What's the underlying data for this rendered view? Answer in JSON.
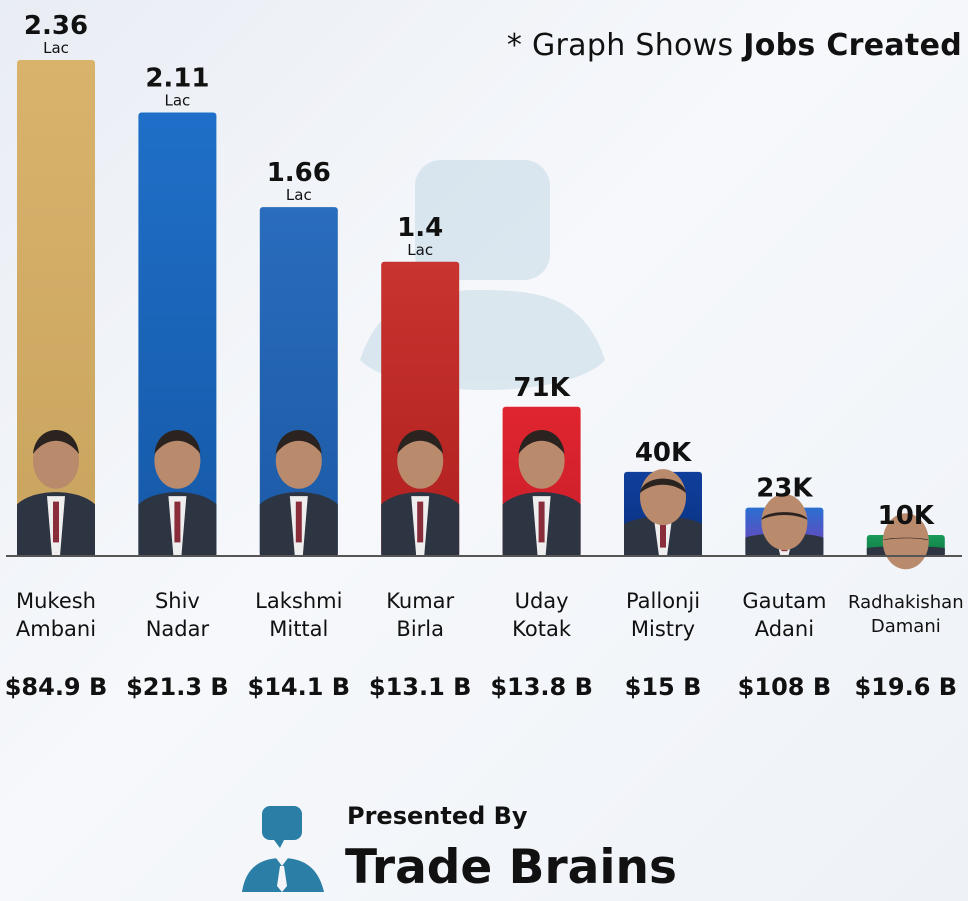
{
  "note": {
    "prefix": "* Graph Shows ",
    "bold": "Jobs Created"
  },
  "chart_data": {
    "type": "bar",
    "ylabel": "",
    "ylim": [
      0,
      2.5
    ],
    "grid": false,
    "legend": "none",
    "categories": [
      {
        "first": "Mukesh",
        "last": "Ambani"
      },
      {
        "first": "Shiv",
        "last": "Nadar"
      },
      {
        "first": "Lakshmi",
        "last": "Mittal"
      },
      {
        "first": "Kumar",
        "last": "Birla"
      },
      {
        "first": "Uday",
        "last": "Kotak"
      },
      {
        "first": "Pallonji",
        "last": "Mistry"
      },
      {
        "first": "Gautam",
        "last": "Adani"
      },
      {
        "first": "Radhakishan",
        "last": "Damani"
      }
    ],
    "values": [
      2.36,
      2.11,
      1.66,
      1.4,
      0.71,
      0.4,
      0.23,
      0.1
    ],
    "value_labels": [
      {
        "num": "2.36",
        "unit": "Lac"
      },
      {
        "num": "2.11",
        "unit": "Lac"
      },
      {
        "num": "1.66",
        "unit": "Lac"
      },
      {
        "num": "1.4",
        "unit": "Lac"
      },
      {
        "num": "71K",
        "unit": ""
      },
      {
        "num": "40K",
        "unit": ""
      },
      {
        "num": "23K",
        "unit": ""
      },
      {
        "num": "10K",
        "unit": ""
      }
    ],
    "net_worth": [
      "$84.9 B",
      "$21.3 B",
      "$14.1 B",
      "$13.1 B",
      "$13.8 B",
      "$15 B",
      "$108 B",
      "$19.6 B"
    ],
    "colors": [
      [
        "#d9b36c",
        "#c9a45e"
      ],
      [
        "#1f6fc8",
        "#1659a8"
      ],
      [
        "#2a6cbd",
        "#1b5aa5"
      ],
      [
        "#c8342f",
        "#b01f1f"
      ],
      [
        "#e0252f",
        "#c81e2a"
      ],
      [
        "#0f3f9c",
        "#0a3080"
      ],
      [
        "#2a6fd1",
        "#7a3cb8"
      ],
      [
        "#1a9a5a",
        "#0e7a45"
      ]
    ]
  },
  "brand": {
    "pre": "Presented By",
    "name": "Trade Brains"
  }
}
